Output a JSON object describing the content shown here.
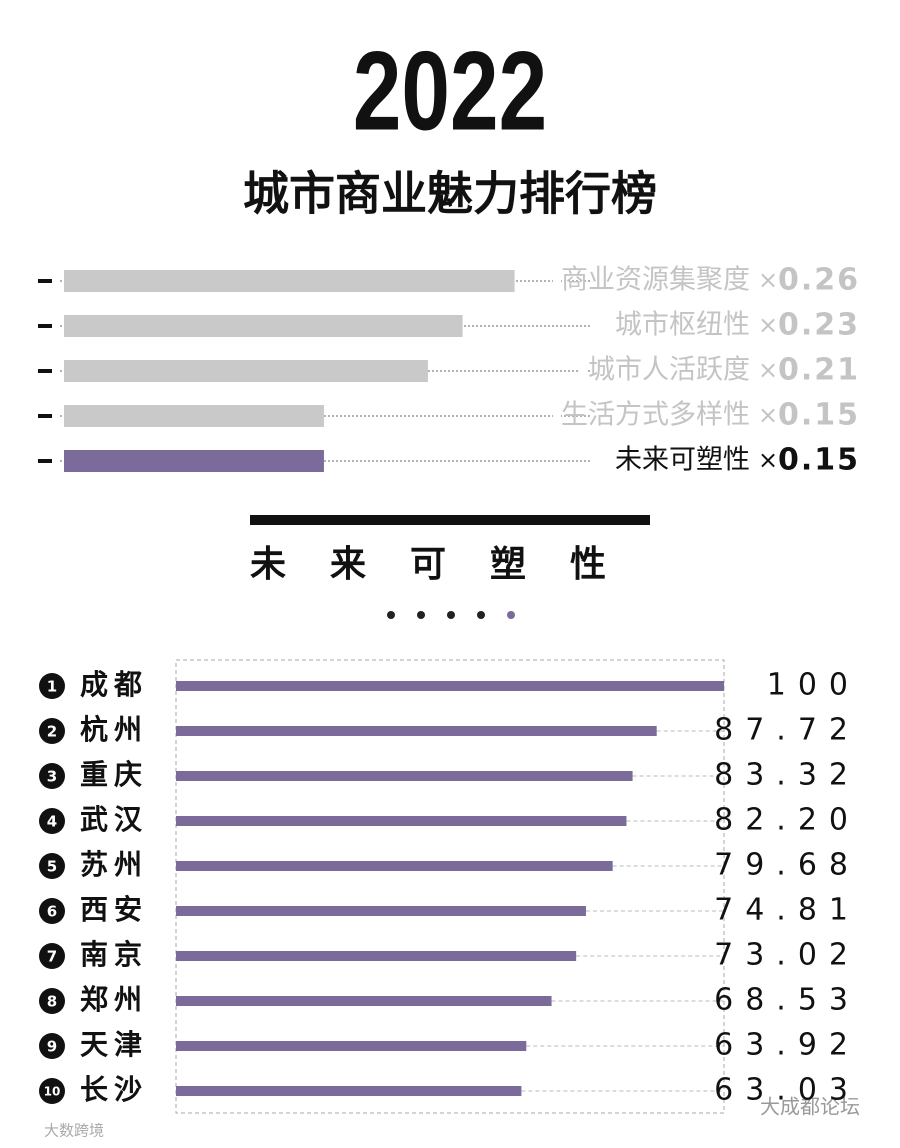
{
  "chart_data": [
    {
      "type": "bar",
      "title": "2022",
      "subtitle": "城市商业魅力排行榜",
      "categories": [
        "商业资源集聚度",
        "城市枢纽性",
        "城市人活跃度",
        "生活方式多样性",
        "未来可塑性"
      ],
      "values": [
        0.26,
        0.23,
        0.21,
        0.15,
        0.15
      ],
      "multiplier_sign": "×",
      "colors": [
        "#c9c9c9",
        "#c9c9c9",
        "#c9c9c9",
        "#c9c9c9",
        "#7a6b9b"
      ],
      "text_colors": [
        "#c4c4c4",
        "#c4c4c4",
        "#c4c4c4",
        "#c4c4c4",
        "#111111"
      ]
    },
    {
      "type": "bar",
      "title": "未来可塑性",
      "ranks": [
        1,
        2,
        3,
        4,
        5,
        6,
        7,
        8,
        9,
        10
      ],
      "categories": [
        "成都",
        "杭州",
        "重庆",
        "武汉",
        "苏州",
        "西安",
        "南京",
        "郑州",
        "天津",
        "长沙"
      ],
      "values": [
        100,
        87.72,
        83.32,
        82.2,
        79.68,
        74.81,
        73.02,
        68.53,
        63.92,
        63.03
      ],
      "value_labels": [
        "100",
        "87.72",
        "83.32",
        "82.20",
        "79.68",
        "74.81",
        "73.02",
        "68.53",
        "63.92",
        "63.03"
      ],
      "color": "#7a6b9b",
      "xlim": [
        0,
        100
      ]
    }
  ],
  "watermarks": [
    "大成都论坛",
    "大数跨境"
  ]
}
